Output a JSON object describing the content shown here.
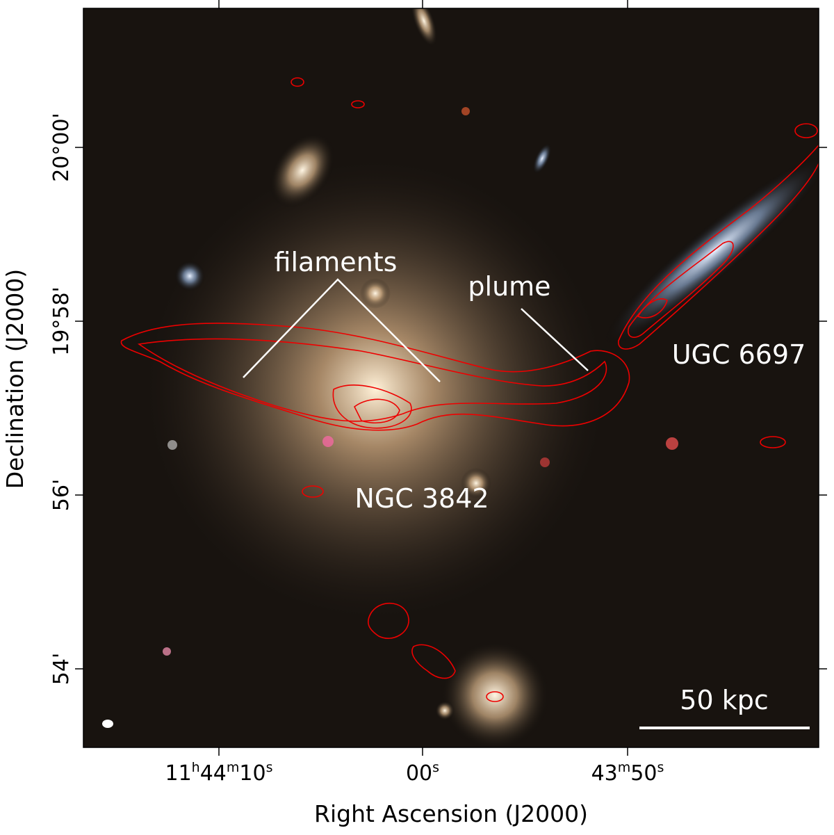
{
  "figure": {
    "x_axis_label": "Right Ascension (J2000)",
    "y_axis_label": "Declination (J2000)",
    "x_ticks": [
      [
        "11",
        "h",
        "44",
        "m",
        "10",
        "s"
      ],
      [
        "00",
        "s"
      ],
      [
        "43",
        "m",
        "50",
        "s"
      ]
    ],
    "y_ticks": [
      "20°00'",
      "19°58'",
      "56'",
      "54'"
    ],
    "annotations": {
      "filaments": "filaments",
      "plume": "plume",
      "ugc": "UGC 6697",
      "ngc": "NGC 3842"
    },
    "scale_bar": "50 kpc"
  }
}
